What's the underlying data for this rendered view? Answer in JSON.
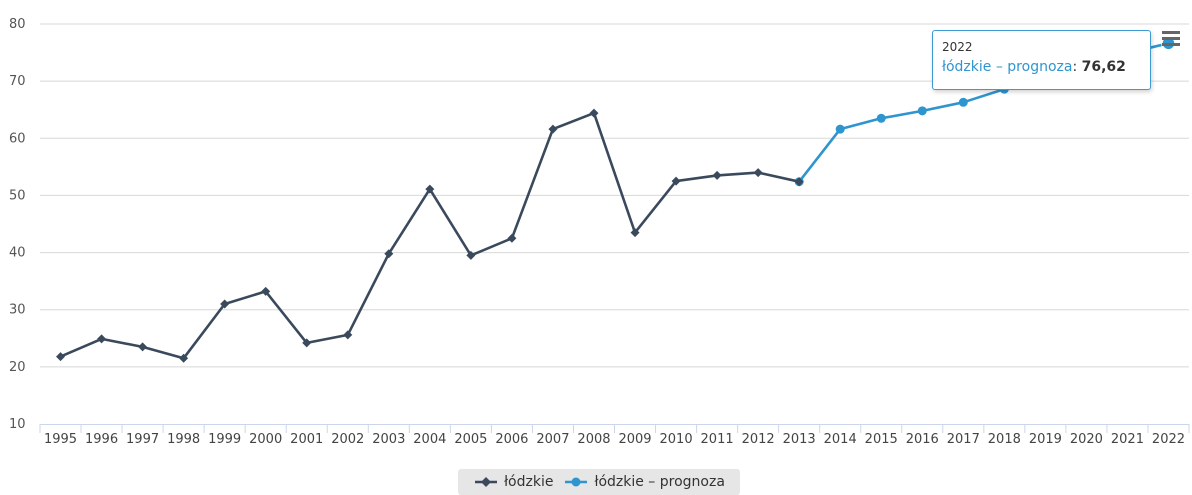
{
  "chart_data": {
    "type": "line",
    "title": "",
    "xlabel": "",
    "ylabel": "",
    "ylim": [
      10,
      80
    ],
    "yticks": [
      "10",
      "20",
      "30",
      "40",
      "50",
      "60",
      "70",
      "80"
    ],
    "categories": [
      "1995",
      "1996",
      "1997",
      "1998",
      "1999",
      "2000",
      "2001",
      "2002",
      "2003",
      "2004",
      "2005",
      "2006",
      "2007",
      "2008",
      "2009",
      "2010",
      "2011",
      "2012",
      "2013",
      "2014",
      "2015",
      "2016",
      "2017",
      "2018",
      "2019",
      "2020",
      "2021",
      "2022"
    ],
    "grid": "horizontal",
    "legend_position": "bottom-center",
    "series": [
      {
        "name": "łódzkie",
        "color": "#3a4a5c",
        "marker": "diamond",
        "values": [
          21.8,
          24.9,
          23.5,
          21.5,
          31.0,
          33.2,
          24.2,
          25.6,
          39.8,
          51.1,
          39.5,
          42.5,
          61.6,
          64.4,
          43.5,
          52.5,
          53.5,
          54.0,
          52.4,
          null,
          null,
          null,
          null,
          null,
          null,
          null,
          null,
          null
        ]
      },
      {
        "name": "łódzkie – prognoza",
        "color": "#2f95cf",
        "marker": "circle",
        "values": [
          null,
          null,
          null,
          null,
          null,
          null,
          null,
          null,
          null,
          null,
          null,
          null,
          null,
          null,
          null,
          null,
          null,
          null,
          52.4,
          61.6,
          63.5,
          64.8,
          66.3,
          68.6,
          71.1,
          73.2,
          74.9,
          76.62
        ]
      }
    ]
  },
  "legend": {
    "items": [
      "łódzkie",
      "łódzkie – prognoza"
    ]
  },
  "tooltip": {
    "header": "2022",
    "series": "łódzkie – prognoza",
    "separator": ":",
    "value": "76,62"
  },
  "menu": {
    "icon": "hamburger-menu-icon"
  }
}
